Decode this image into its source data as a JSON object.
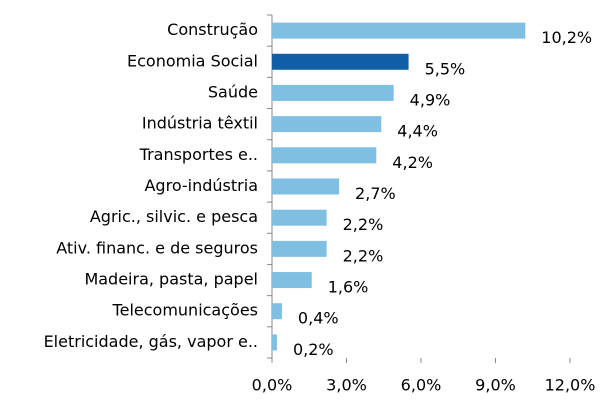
{
  "chart_data": {
    "type": "bar",
    "orientation": "horizontal",
    "categories": [
      "Construção",
      "Economia Social",
      "Saúde",
      "Indústria têxtil",
      "Transportes e..",
      "Agro-indústria",
      "Agric., silvic. e pesca",
      "Ativ. financ. e de seguros",
      "Madeira, pasta, papel",
      "Telecomunicações",
      "Eletricidade, gás, vapor e.."
    ],
    "values": [
      10.2,
      5.5,
      4.9,
      4.4,
      4.2,
      2.7,
      2.2,
      2.2,
      1.6,
      0.4,
      0.2
    ],
    "value_labels": [
      "10,2%",
      "5,5%",
      "4,9%",
      "4,4%",
      "4,2%",
      "2,7%",
      "2,2%",
      "2,2%",
      "1,6%",
      "0,4%",
      "0,2%"
    ],
    "colors": [
      "#7fbfe1",
      "#0f5fa8",
      "#7fbfe1",
      "#7fbfe1",
      "#7fbfe1",
      "#7fbfe1",
      "#7fbfe1",
      "#7fbfe1",
      "#7fbfe1",
      "#7fbfe1",
      "#7fbfe1"
    ],
    "xlim": [
      0,
      12
    ],
    "xticks": [
      {
        "value": 0,
        "label": "0,0%"
      },
      {
        "value": 3,
        "label": "3,0%"
      },
      {
        "value": 6,
        "label": "6,0%"
      },
      {
        "value": 9,
        "label": "9,0%"
      },
      {
        "value": 12,
        "label": "12,0%"
      }
    ]
  }
}
